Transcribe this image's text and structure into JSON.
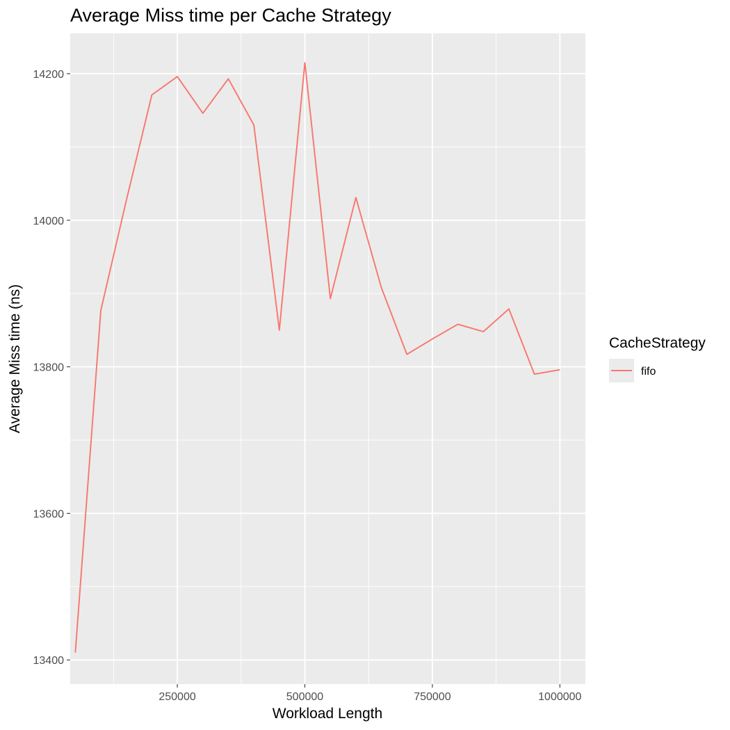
{
  "chart_data": {
    "type": "line",
    "title": "Average Miss time per Cache Strategy",
    "xlabel": "Workload Length",
    "ylabel": "Average Miss time (ns)",
    "xlim": [
      40000,
      1050000
    ],
    "ylim": [
      13367,
      14255
    ],
    "xticks": [
      250000,
      500000,
      750000,
      1000000
    ],
    "xtick_labels": [
      "250000",
      "500000",
      "750000",
      "1000000"
    ],
    "yticks": [
      13400,
      13600,
      13800,
      14000,
      14200
    ],
    "ytick_labels": [
      "13400",
      "13600",
      "13800",
      "14000",
      "14200"
    ],
    "grid": true,
    "background": "#ebebeb",
    "legend": {
      "title": "CacheStrategy",
      "position": "right"
    },
    "series": [
      {
        "name": "fifo",
        "color": "#f8766d",
        "x": [
          50000,
          100000,
          150000,
          200000,
          250000,
          300000,
          350000,
          400000,
          450000,
          500000,
          550000,
          600000,
          650000,
          700000,
          750000,
          800000,
          850000,
          900000,
          950000,
          1000000
        ],
        "y": [
          13410,
          13877,
          14027,
          14171,
          14196,
          14146,
          14193,
          14130,
          13850,
          14215,
          13893,
          14031,
          13908,
          13817,
          13838,
          13858,
          13848,
          13879,
          13790,
          13796
        ]
      }
    ]
  }
}
